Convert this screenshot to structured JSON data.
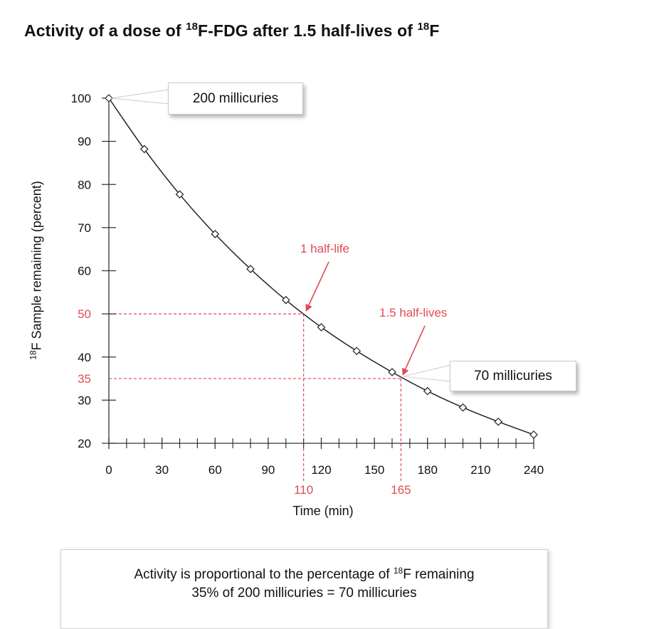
{
  "title": {
    "pre": "Activity of a dose of ",
    "sup1": "18",
    "mid": "F-FDG after 1.5 half-lives of ",
    "sup2": "18",
    "post": "F"
  },
  "colors": {
    "curve": "#222222",
    "axis": "#333333",
    "highlight": "#e24a52",
    "background": "#ffffff"
  },
  "chart_data": {
    "type": "line",
    "xlabel": "Time (min)",
    "ylabel": {
      "sup": "18",
      "text": "F Sample remaining (percent)"
    },
    "xlim": [
      0,
      240
    ],
    "ylim": [
      20,
      100
    ],
    "x_ticks": [
      0,
      30,
      60,
      90,
      120,
      150,
      180,
      210,
      240
    ],
    "x_minor_ticks": [
      10,
      20,
      40,
      50,
      70,
      80,
      100,
      110,
      130,
      140,
      160,
      170,
      190,
      200,
      220,
      230
    ],
    "y_ticks": [
      20,
      30,
      40,
      50,
      60,
      70,
      80,
      90,
      100
    ],
    "highlight_x_ticks": [
      110,
      165
    ],
    "highlight_y_ticks": [
      35,
      50
    ],
    "grid": false,
    "series": [
      {
        "markers": "diamond",
        "x": [
          0,
          20,
          40,
          60,
          80,
          100,
          120,
          140,
          160,
          180,
          200,
          220,
          240
        ],
        "y": [
          100,
          88.2,
          77.7,
          68.5,
          60.4,
          53.2,
          46.9,
          41.4,
          36.5,
          32.1,
          28.3,
          25.0,
          22.0
        ]
      }
    ],
    "reference_points": [
      {
        "x": 110,
        "y": 50,
        "label": "1 half-life"
      },
      {
        "x": 165,
        "y": 35,
        "label": "1.5 half-lives"
      }
    ],
    "callouts": [
      {
        "x": 0,
        "y": 100,
        "text": "200 millicuries"
      },
      {
        "x": 165,
        "y": 35,
        "text": "70 millicuries"
      }
    ]
  },
  "footnote": {
    "line1_pre": "Activity is proportional to the percentage of ",
    "line1_sup": "18",
    "line1_post": "F remaining",
    "line2": "35% of 200 millicuries = 70 millicuries"
  }
}
